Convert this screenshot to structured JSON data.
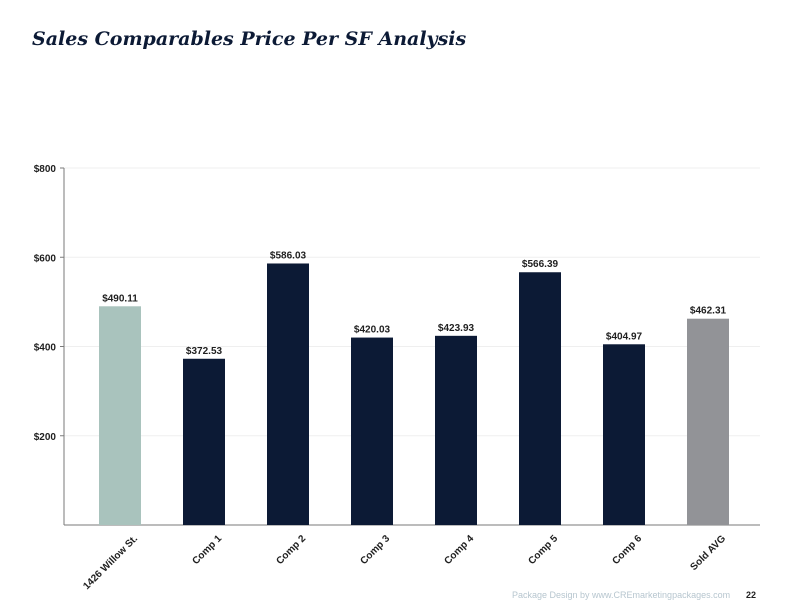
{
  "page": {
    "title": "Sales Comparables Price Per SF Analysis",
    "footer_text": "Package Design by ",
    "footer_link": "www.CREmarketingpackages.com",
    "page_number": "22"
  },
  "colors": {
    "subject": "#a9c3bd",
    "comp": "#0c1a35",
    "average": "#929397",
    "axis": "#7a7a7a",
    "grid": "#efefef"
  },
  "chart_data": {
    "type": "bar",
    "title": "Sales Comparables Price Per SF Analysis",
    "xlabel": "",
    "ylabel": "",
    "ylim": [
      0,
      800
    ],
    "yticks": [
      200,
      400,
      600,
      800
    ],
    "ytick_labels": [
      "$200",
      "$400",
      "$600",
      "$800"
    ],
    "grid": true,
    "categories": [
      "1426 Willow St.",
      "Comp 1",
      "Comp 2",
      "Comp 3",
      "Comp 4",
      "Comp 5",
      "Comp 6",
      "Sold AVG"
    ],
    "values": [
      490.11,
      372.53,
      586.03,
      420.03,
      423.93,
      566.39,
      404.97,
      462.31
    ],
    "value_labels": [
      "$490.11",
      "$372.53",
      "$586.03",
      "$420.03",
      "$423.93",
      "$566.39",
      "$404.97",
      "$462.31"
    ],
    "bar_roles": [
      "subject",
      "comp",
      "comp",
      "comp",
      "comp",
      "comp",
      "comp",
      "average"
    ]
  }
}
